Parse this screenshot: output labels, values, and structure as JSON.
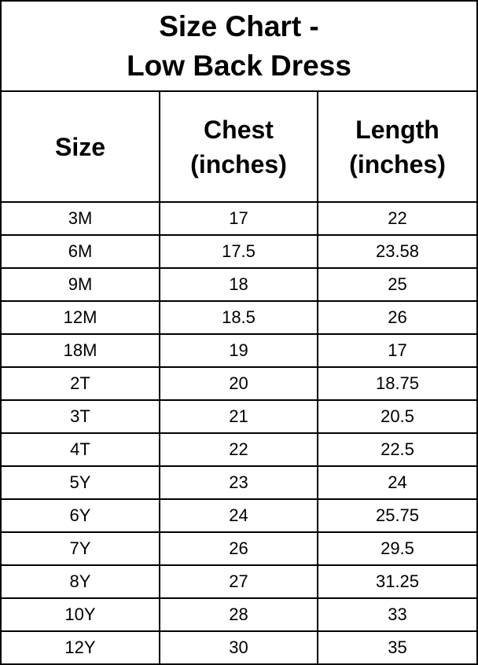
{
  "title": {
    "line1": "Size Chart -",
    "line2": "Low Back Dress"
  },
  "table": {
    "headers": [
      {
        "line1": "Size",
        "line2": ""
      },
      {
        "line1": "Chest",
        "line2": "(inches)"
      },
      {
        "line1": "Length",
        "line2": "(inches)"
      }
    ],
    "rows": [
      [
        "3M",
        "17",
        "22"
      ],
      [
        "6M",
        "17.5",
        "23.58"
      ],
      [
        "9M",
        "18",
        "25"
      ],
      [
        "12M",
        "18.5",
        "26"
      ],
      [
        "18M",
        "19",
        "17"
      ],
      [
        "2T",
        "20",
        "18.75"
      ],
      [
        "3T",
        "21",
        "20.5"
      ],
      [
        "4T",
        "22",
        "22.5"
      ],
      [
        "5Y",
        "23",
        "24"
      ],
      [
        "6Y",
        "24",
        "25.75"
      ],
      [
        "7Y",
        "26",
        "29.5"
      ],
      [
        "8Y",
        "27",
        "31.25"
      ],
      [
        "10Y",
        "28",
        "33"
      ],
      [
        "12Y",
        "30",
        "35"
      ]
    ]
  }
}
